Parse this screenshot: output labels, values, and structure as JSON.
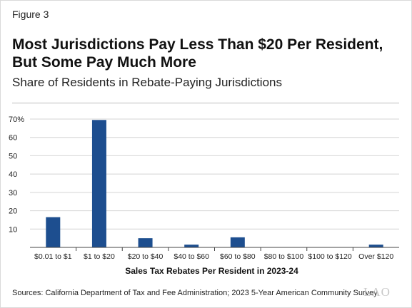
{
  "figure_label": "Figure 3",
  "chart_data": {
    "type": "bar",
    "title": "Most Jurisdictions Pay Less Than $20 Per Resident, But Some Pay Much More",
    "subtitle": "Share of Residents in Rebate-Paying Jurisdictions",
    "xlabel": "Sales Tax Rebates Per Resident in 2023-24",
    "ylabel": "",
    "ylim": [
      0,
      70
    ],
    "yticks": [
      0,
      10,
      20,
      30,
      40,
      50,
      60,
      70
    ],
    "ytick_labels": [
      "",
      "10",
      "20",
      "30",
      "40",
      "50",
      "60",
      "70%"
    ],
    "categories": [
      "$0.01 to $1",
      "$1 to $20",
      "$20 to $40",
      "$40 to $60",
      "$60 to $80",
      "$80 to $100",
      "$100 to $120",
      "Over $120"
    ],
    "values": [
      16.5,
      69.5,
      5,
      1.5,
      5.5,
      0,
      0,
      1.5
    ],
    "bar_color": "#1d4e8f",
    "grid": true
  },
  "source": "Sources: California Department of Tax and Fee Administration; 2023 5-Year American Community Survey.",
  "logo_text": "LAO"
}
